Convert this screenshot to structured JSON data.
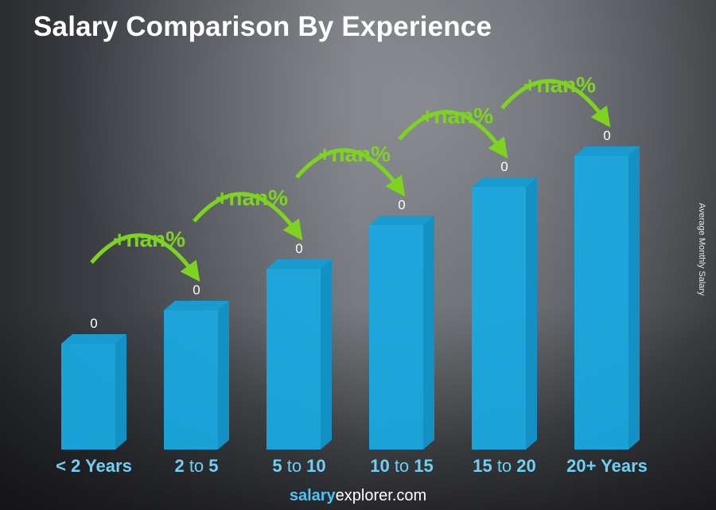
{
  "chart_data": {
    "type": "bar",
    "title": "Salary Comparison By Experience",
    "ylabel": "Average Monthly Salary",
    "xlabel": "",
    "categories": [
      "< 2 Years",
      "2 to 5",
      "5 to 10",
      "10 to 15",
      "15 to 20",
      "20+ Years"
    ],
    "value_labels": [
      "0",
      "0",
      "0",
      "0",
      "0",
      "0"
    ],
    "values": [
      0,
      0,
      0,
      0,
      0,
      0
    ],
    "increase_labels": [
      "+nan%",
      "+nan%",
      "+nan%",
      "+nan%",
      "+nan%"
    ],
    "colors": {
      "bar": "#1ba8e0",
      "bar_side": "#1390c4",
      "bar_top": "#1a9bd0",
      "increase": "#7ed321",
      "category_text": "#6fd0f5"
    }
  },
  "footer": {
    "brand_bold": "salary",
    "brand_rest": "explorer.com"
  }
}
